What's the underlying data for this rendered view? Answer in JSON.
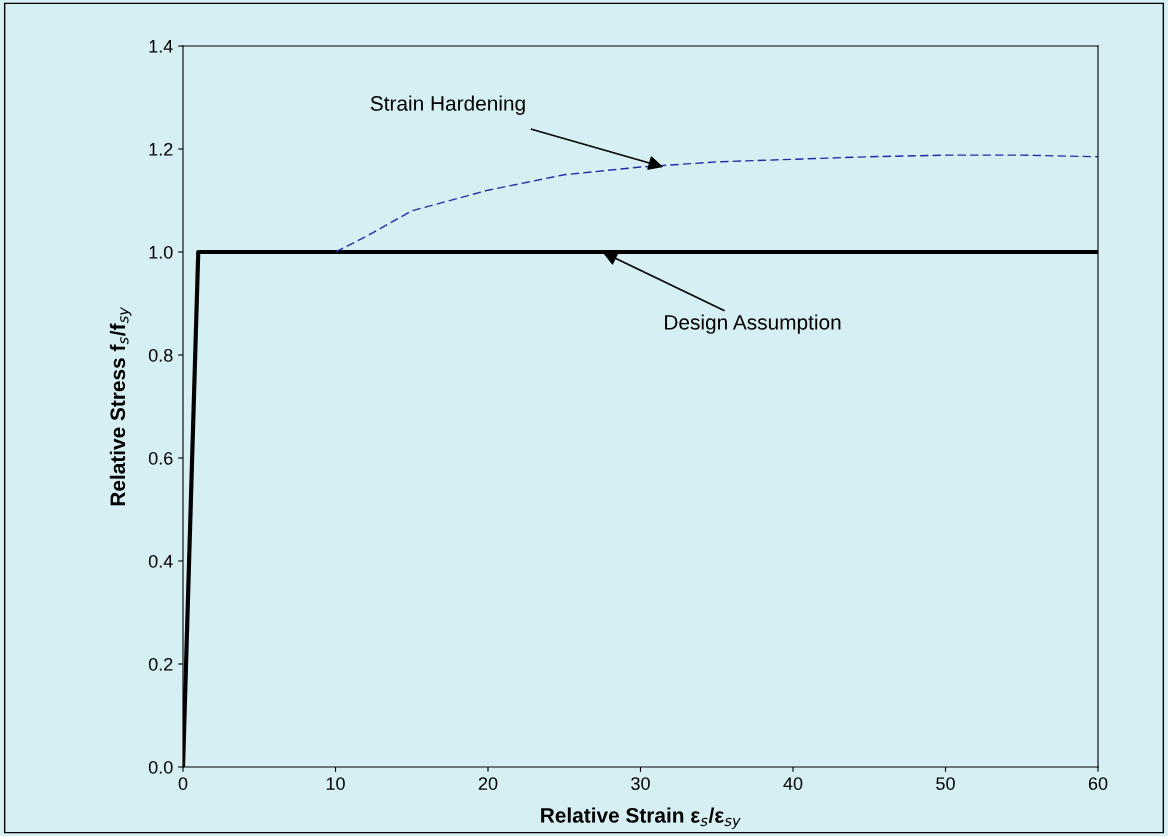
{
  "chart_data": {
    "type": "line",
    "xlabel": "Relative Strain ε$_{s}$/ε$_{sy}$",
    "ylabel": "Relative Stress f$_{s}$/f$_{sy}$",
    "series": [
      {
        "color": "#000000",
        "line_style": "solid",
        "x": [
          0,
          1,
          60
        ],
        "values": [
          0,
          1.0,
          1.0
        ]
      },
      {
        "color": "#1f2fa8",
        "line_style": "dashed",
        "x": [
          10,
          12,
          15,
          20,
          25,
          30,
          35,
          40,
          45,
          50,
          55,
          60
        ],
        "values": [
          1.0,
          1.03,
          1.08,
          1.12,
          1.15,
          1.165,
          1.175,
          1.18,
          1.185,
          1.188,
          1.188,
          1.185
        ]
      }
    ],
    "annotations": [
      {
        "text": "Strain Hardening",
        "x": 31.5,
        "y": 1.165
      },
      {
        "text": "Design Assumption",
        "x": 27.5,
        "y": 1.0
      }
    ],
    "xlim": [
      0,
      60
    ],
    "xticks": [
      0,
      10,
      20,
      30,
      40,
      50,
      60
    ],
    "ylim": [
      0,
      1.4
    ],
    "yticks": [
      {
        "value": 0,
        "label": "0.0"
      },
      {
        "value": 0.2,
        "label": "0.2"
      },
      {
        "value": 0.4,
        "label": "0.4"
      },
      {
        "value": 0.6,
        "label": "0.6"
      },
      {
        "value": 0.8,
        "label": "0.8"
      },
      {
        "value": 1.0,
        "label": "1.0"
      },
      {
        "value": 1.2,
        "label": "1.2"
      },
      {
        "value": 1.4,
        "label": "1.4"
      }
    ],
    "grid": false,
    "legend": false,
    "marker": "none"
  }
}
